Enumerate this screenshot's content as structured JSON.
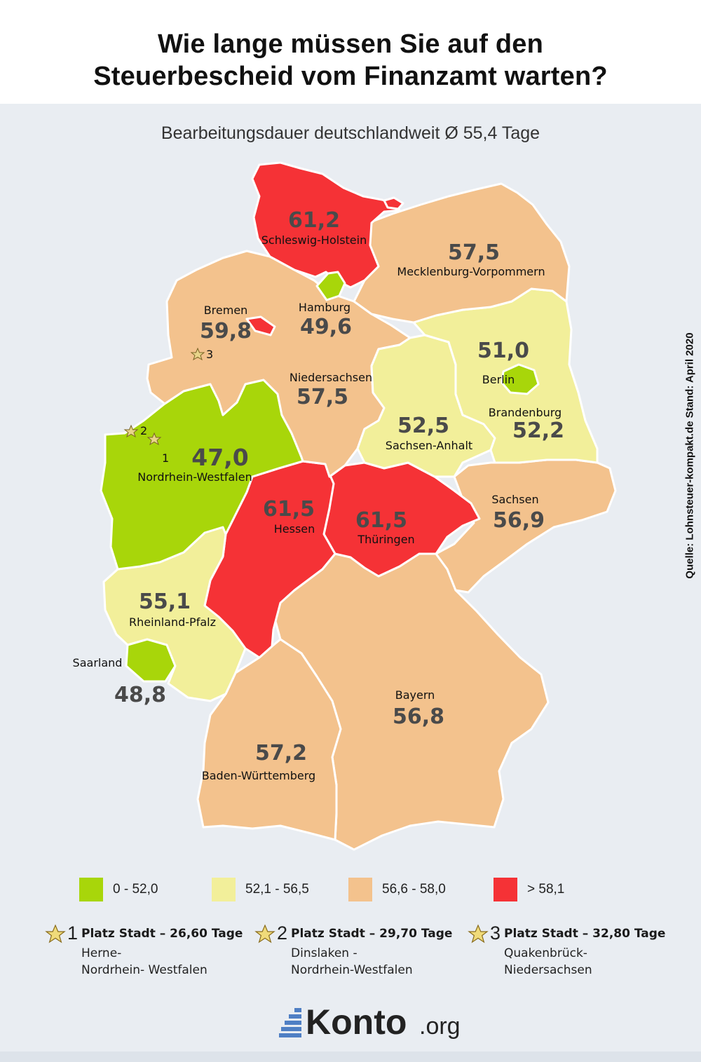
{
  "header": {
    "title_line1": "Wie lange müssen Sie auf den",
    "title_line2": "Steuerbescheid vom Finanzamt warten?",
    "subtitle": "Bearbeitungsdauer deutschlandweit Ø 55,4 Tage"
  },
  "source": "Quelle: Lohnsteuer-kompakt.de Stand: April 2020",
  "colors": {
    "green": "#a8d60a",
    "yellow": "#f2ef9a",
    "orange": "#f3c28d",
    "red": "#f53236"
  },
  "states": {
    "schleswig_holstein": {
      "name": "Schleswig-Holstein",
      "value": "61,2"
    },
    "mecklenburg_vorpommern": {
      "name": "Mecklenburg-Vorpommern",
      "value": "57,5"
    },
    "hamburg": {
      "name": "Hamburg",
      "value": "49,6"
    },
    "bremen": {
      "name": "Bremen",
      "value": "59,8"
    },
    "niedersachsen": {
      "name": "Niedersachsen",
      "value": "57,5"
    },
    "berlin": {
      "name": "Berlin",
      "value": "51,0"
    },
    "brandenburg": {
      "name": "Brandenburg",
      "value": "52,2"
    },
    "sachsen_anhalt": {
      "name": "Sachsen-Anhalt",
      "value": "52,5"
    },
    "nordrhein_westfalen": {
      "name": "Nordrhein-Westfalen",
      "value": "47,0"
    },
    "hessen": {
      "name": "Hessen",
      "value": "61,5"
    },
    "thueringen": {
      "name": "Thüringen",
      "value": "61,5"
    },
    "sachsen": {
      "name": "Sachsen",
      "value": "56,9"
    },
    "rheinland_pfalz": {
      "name": "Rheinland-Pfalz",
      "value": "55,1"
    },
    "saarland": {
      "name": "Saarland",
      "value": "48,8"
    },
    "bayern": {
      "name": "Bayern",
      "value": "56,8"
    },
    "baden_wuerttemberg": {
      "name": "Baden-Württemberg",
      "value": "57,2"
    }
  },
  "map_stars": [
    "1",
    "2",
    "3"
  ],
  "legend": [
    {
      "label": "0 - 52,0",
      "color": "green"
    },
    {
      "label": "52,1 - 56,5",
      "color": "yellow"
    },
    {
      "label": "56,6 - 58,0",
      "color": "orange"
    },
    {
      "label": "> 58,1",
      "color": "red"
    }
  ],
  "ranking": [
    {
      "rank": "1",
      "heading": "Platz Stadt – 26,60 Tage",
      "line1": "Herne-",
      "line2": "Nordrhein- Westfalen"
    },
    {
      "rank": "2",
      "heading": "Platz Stadt – 29,70 Tage",
      "line1": "Dinslaken -",
      "line2": "Nordrhein-Westfalen"
    },
    {
      "rank": "3",
      "heading": "Platz Stadt – 32,80 Tage",
      "line1": "Quakenbrück-",
      "line2": "Niedersachsen"
    }
  ],
  "logo": {
    "name": "Konto",
    "tld": ".org"
  }
}
